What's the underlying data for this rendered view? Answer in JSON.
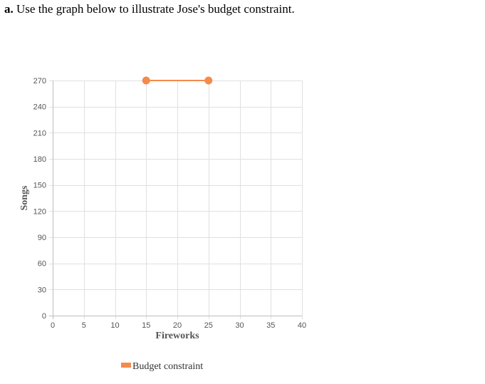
{
  "question": {
    "part_label": "a.",
    "text": "Use the graph below to illustrate Jose's budget constraint."
  },
  "colors": {
    "series": "#f58a4c",
    "grid": "#e0e0e0",
    "axis": "#bdbdbd",
    "tick_text": "#555555"
  },
  "chart_data": {
    "type": "line",
    "xlabel": "Fireworks",
    "ylabel": "Songs",
    "xlim": [
      0,
      40
    ],
    "ylim": [
      0,
      270
    ],
    "x_ticks": [
      0,
      5,
      10,
      15,
      20,
      25,
      30,
      35,
      40
    ],
    "y_ticks": [
      0,
      30,
      60,
      90,
      120,
      150,
      180,
      210,
      240,
      270
    ],
    "grid": true,
    "legend_position": "bottom",
    "series": [
      {
        "name": "Budget constraint",
        "color": "#f58a4c",
        "points": [
          {
            "x": 15,
            "y": 270
          },
          {
            "x": 25,
            "y": 270
          }
        ]
      }
    ]
  }
}
